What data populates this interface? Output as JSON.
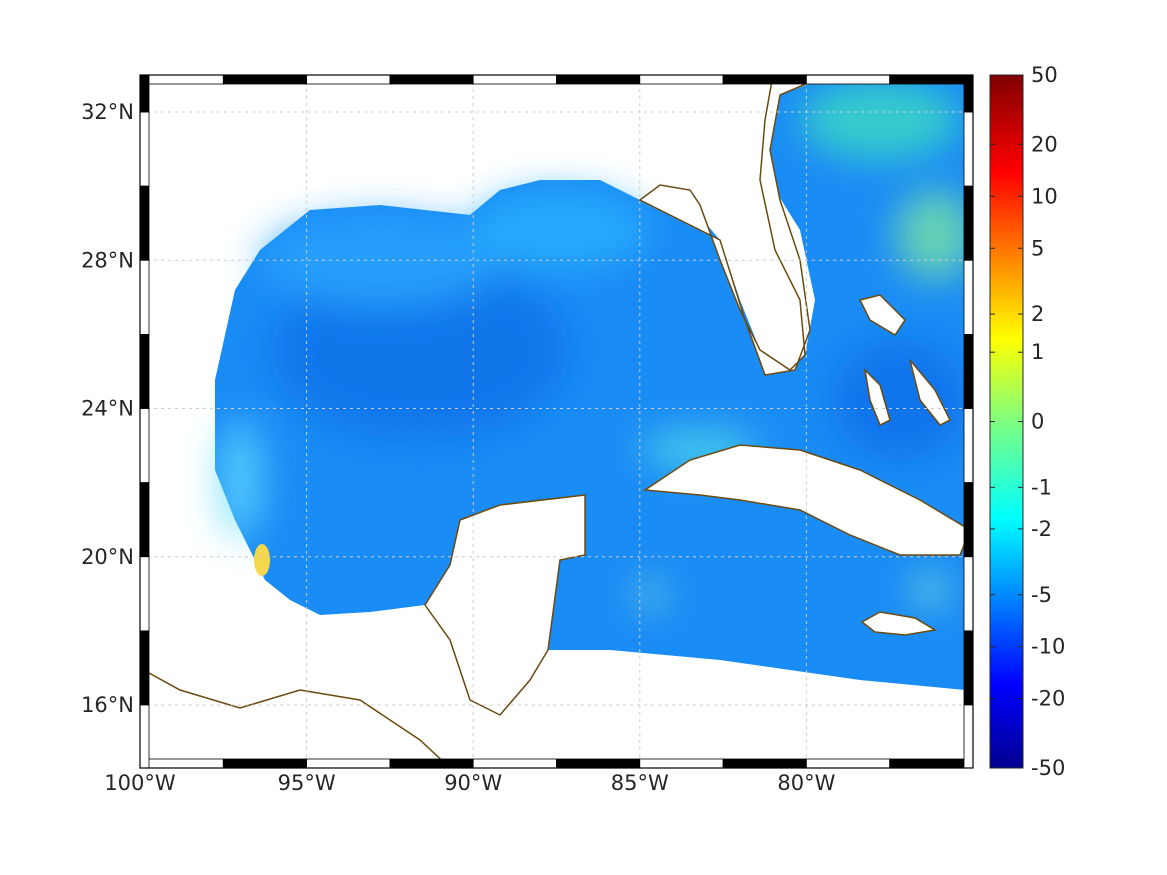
{
  "map": {
    "lon_labels": [
      "100°W",
      "95°W",
      "90°W",
      "85°W",
      "80°W"
    ],
    "lat_labels": [
      "32°N",
      "28°N",
      "24°N",
      "20°N",
      "16°N"
    ],
    "lon_values": [
      -100,
      -95,
      -90,
      -85,
      -80
    ],
    "lat_values": [
      32,
      28,
      24,
      20,
      16
    ],
    "lon_range": [
      -100,
      -75
    ],
    "lat_range": [
      14.3,
      33
    ],
    "grid": true,
    "coastline_color": "#6b4a10",
    "colormap": "jet"
  },
  "colorbar": {
    "labels": [
      "50",
      "20",
      "10",
      "5",
      "2",
      "1",
      "0",
      "-1",
      "-2",
      "-5",
      "-10",
      "-20",
      "-50"
    ],
    "position": "right"
  }
}
